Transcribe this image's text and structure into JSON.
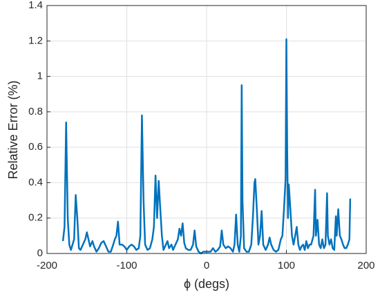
{
  "chart_data": {
    "type": "line",
    "x_label": "ϕ (degs)",
    "y_label": "Relative Error (%)",
    "xlim": [
      -200,
      200
    ],
    "xticks": [
      -200,
      -100,
      0,
      100,
      200
    ],
    "ylim": [
      0,
      1.4
    ],
    "yticks": [
      0,
      0.2,
      0.4,
      0.6,
      0.8,
      1,
      1.2,
      1.4
    ],
    "grid": true,
    "x": [
      -180,
      -178,
      -176,
      -174,
      -172,
      -170,
      -168,
      -166,
      -164,
      -162,
      -160,
      -158,
      -155,
      -152,
      -150,
      -148,
      -146,
      -143,
      -141,
      -138,
      -135,
      -132,
      -129,
      -126,
      -123,
      -120,
      -117,
      -115,
      -113,
      -111,
      -109,
      -106,
      -103,
      -100,
      -97,
      -94,
      -91,
      -88,
      -85,
      -83,
      -81,
      -79,
      -77,
      -74,
      -71,
      -68,
      -66,
      -64,
      -62,
      -60,
      -58,
      -56,
      -54,
      -51,
      -49,
      -47,
      -44,
      -42,
      -39,
      -36,
      -34,
      -32,
      -30,
      -28,
      -26,
      -23,
      -20,
      -17,
      -15,
      -13,
      -10,
      -7,
      -4,
      -1,
      2,
      5,
      8,
      11,
      14,
      17,
      19,
      21,
      24,
      27,
      30,
      33,
      35,
      37,
      39,
      41,
      43,
      44,
      45,
      47,
      50,
      53,
      56,
      58,
      60,
      61,
      63,
      65,
      67,
      69,
      71,
      74,
      77,
      79,
      81,
      84,
      87,
      90,
      93,
      95,
      97,
      99,
      100,
      101,
      102,
      103,
      105,
      107,
      109,
      111,
      113,
      115,
      117,
      119,
      121,
      123,
      125,
      127,
      129,
      131,
      134,
      136,
      137,
      139,
      141,
      143,
      145,
      147,
      149,
      151,
      152,
      154,
      156,
      158,
      160,
      162,
      163,
      165,
      167,
      169,
      171,
      173,
      175,
      177,
      179,
      180
    ],
    "series": [
      {
        "name": "Relative Error",
        "color": "#0072bd",
        "values": [
          0.07,
          0.15,
          0.74,
          0.2,
          0.05,
          0.02,
          0.05,
          0.08,
          0.33,
          0.2,
          0.03,
          0.02,
          0.05,
          0.08,
          0.12,
          0.08,
          0.04,
          0.07,
          0.04,
          0.01,
          0.03,
          0.06,
          0.07,
          0.04,
          0.01,
          0.01,
          0.05,
          0.08,
          0.1,
          0.18,
          0.05,
          0.05,
          0.04,
          0.02,
          0.04,
          0.05,
          0.04,
          0.02,
          0.03,
          0.1,
          0.78,
          0.3,
          0.05,
          0.02,
          0.03,
          0.08,
          0.15,
          0.44,
          0.2,
          0.41,
          0.25,
          0.1,
          0.02,
          0.05,
          0.07,
          0.03,
          0.05,
          0.02,
          0.05,
          0.08,
          0.14,
          0.1,
          0.17,
          0.06,
          0.03,
          0.02,
          0.02,
          0.05,
          0.13,
          0.04,
          0.01,
          0.0,
          0.01,
          0.01,
          0.01,
          0.01,
          0.03,
          0.01,
          0.02,
          0.04,
          0.13,
          0.05,
          0.03,
          0.04,
          0.03,
          0.01,
          0.05,
          0.22,
          0.05,
          0.01,
          0.1,
          0.95,
          0.3,
          0.03,
          0.01,
          0.01,
          0.05,
          0.2,
          0.4,
          0.42,
          0.25,
          0.05,
          0.1,
          0.24,
          0.05,
          0.02,
          0.05,
          0.09,
          0.05,
          0.02,
          0.01,
          0.02,
          0.08,
          0.1,
          0.25,
          0.42,
          1.21,
          0.6,
          0.2,
          0.39,
          0.25,
          0.1,
          0.05,
          0.1,
          0.15,
          0.05,
          0.02,
          0.04,
          0.05,
          0.02,
          0.07,
          0.03,
          0.05,
          0.05,
          0.1,
          0.36,
          0.1,
          0.19,
          0.05,
          0.03,
          0.08,
          0.03,
          0.05,
          0.34,
          0.1,
          0.05,
          0.08,
          0.03,
          0.02,
          0.21,
          0.1,
          0.25,
          0.1,
          0.08,
          0.05,
          0.03,
          0.03,
          0.05,
          0.08,
          0.31
        ]
      }
    ]
  }
}
